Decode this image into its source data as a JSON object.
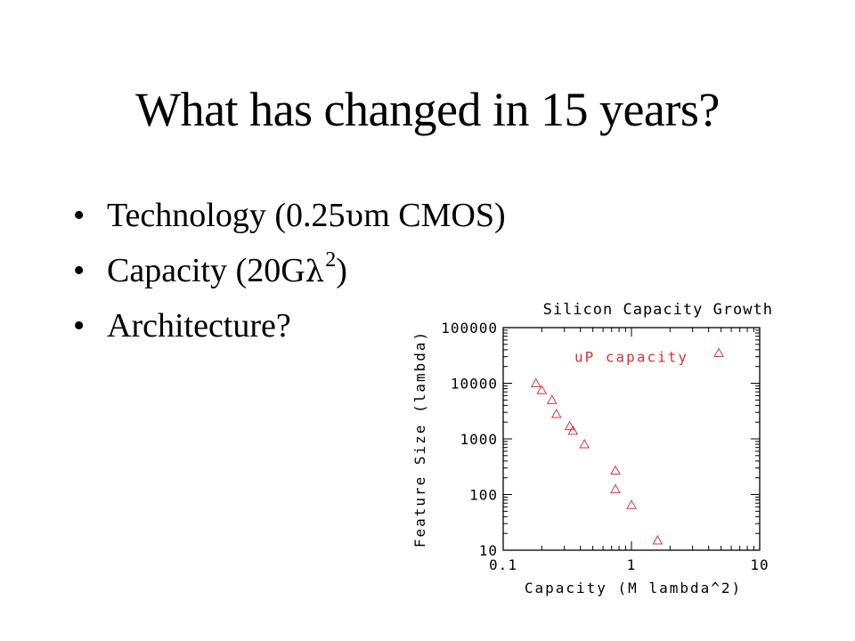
{
  "slide": {
    "title": "What has changed in 15 years?",
    "bullet_glyph": "•",
    "bullets": [
      {
        "pre": "Technology (0.25",
        "symbol": "υ",
        "post": "m CMOS)",
        "sup": ""
      },
      {
        "pre": "Capacity (20G",
        "symbol": "λ",
        "post": ")",
        "sup": "2"
      },
      {
        "pre": "Architecture?",
        "symbol": "",
        "post": "",
        "sup": ""
      }
    ]
  },
  "chart_data": {
    "type": "scatter",
    "title": "Silicon Capacity Growth",
    "xlabel": "Capacity (M lambda^2)",
    "ylabel": "Feature Size (lambda)",
    "x_scale": "log",
    "y_scale": "log",
    "xlim": [
      0.1,
      10
    ],
    "ylim": [
      10,
      100000
    ],
    "x_ticks": [
      {
        "value": 0.1,
        "label": "0.1"
      },
      {
        "value": 1,
        "label": "1"
      },
      {
        "value": 10,
        "label": "10"
      }
    ],
    "y_ticks": [
      {
        "value": 10,
        "label": "10"
      },
      {
        "value": 100,
        "label": "100"
      },
      {
        "value": 1000,
        "label": "1000"
      },
      {
        "value": 10000,
        "label": "10000"
      },
      {
        "value": 100000,
        "label": "100000"
      }
    ],
    "grid": false,
    "annotation": "uP capacity",
    "marker": "triangle",
    "colors": {
      "series": "#e03030",
      "axis": "#000000"
    },
    "series": [
      {
        "points": [
          {
            "x": 0.18,
            "y": 10000
          },
          {
            "x": 0.2,
            "y": 7500
          },
          {
            "x": 0.24,
            "y": 5000
          },
          {
            "x": 0.26,
            "y": 2800
          },
          {
            "x": 0.33,
            "y": 1700
          },
          {
            "x": 0.35,
            "y": 1400
          },
          {
            "x": 0.43,
            "y": 800
          },
          {
            "x": 0.75,
            "y": 270
          },
          {
            "x": 0.75,
            "y": 125
          },
          {
            "x": 1.0,
            "y": 65
          },
          {
            "x": 1.6,
            "y": 15
          },
          {
            "x": 4.8,
            "y": 35000
          }
        ]
      }
    ]
  }
}
